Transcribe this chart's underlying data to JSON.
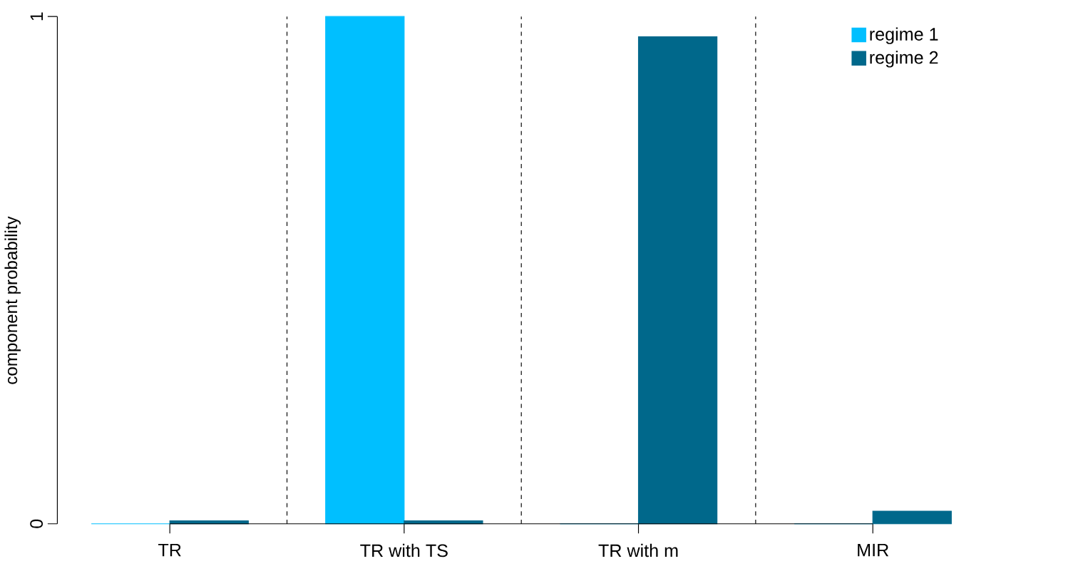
{
  "chart_data": {
    "type": "bar",
    "ylabel": "component probability",
    "categories": [
      "TR",
      "TR with TS",
      "TR with m",
      "MIR"
    ],
    "series": [
      {
        "name": "regime 1",
        "color": "#00bfff",
        "values": [
          0,
          1,
          0,
          0
        ]
      },
      {
        "name": "regime 2",
        "color": "#00688b",
        "values": [
          0.006,
          0.006,
          0.96,
          0.025
        ]
      }
    ],
    "ylim": [
      0,
      1
    ],
    "yticks": [
      0,
      1
    ],
    "legend": "top right"
  }
}
